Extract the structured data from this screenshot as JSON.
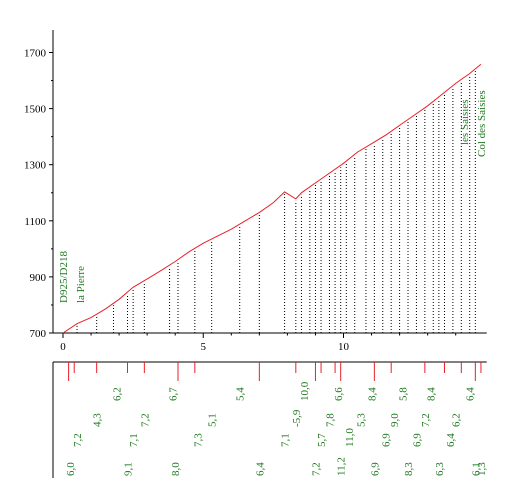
{
  "chart_data": {
    "type": "line",
    "title": "",
    "xlabel": "",
    "ylabel": "",
    "xlim": [
      0,
      15
    ],
    "ylim": [
      700,
      1780
    ],
    "x_ticks": [
      0,
      5,
      10
    ],
    "y_ticks": [
      700,
      900,
      1100,
      1300,
      1500,
      1700
    ],
    "grid": false,
    "colors": {
      "profile": "#e8202a",
      "axis": "#000000",
      "dotted": "#000000",
      "labels": "#1f7a1f"
    },
    "series": [
      {
        "x": [
          0.0,
          0.5,
          1.0,
          1.5,
          2.0,
          2.5,
          3.0,
          3.5,
          4.0,
          4.5,
          5.0,
          5.5,
          6.0,
          6.5,
          7.0,
          7.5,
          7.9,
          8.3,
          8.5,
          9.0,
          9.5,
          10.0,
          10.5,
          11.0,
          11.5,
          12.0,
          12.5,
          13.0,
          13.5,
          14.0,
          14.5,
          14.9
        ],
        "y": [
          700,
          733,
          755,
          785,
          820,
          863,
          893,
          923,
          955,
          990,
          1020,
          1045,
          1070,
          1100,
          1130,
          1165,
          1203,
          1178,
          1200,
          1235,
          1270,
          1305,
          1345,
          1375,
          1405,
          1440,
          1475,
          1510,
          1550,
          1590,
          1625,
          1658
        ]
      }
    ],
    "dotted_markers_x": [
      0.5,
      1.2,
      1.8,
      2.3,
      2.5,
      2.9,
      3.8,
      4.1,
      4.7,
      5.3,
      6.3,
      7.0,
      7.9,
      8.3,
      8.5,
      8.8,
      9.0,
      9.2,
      9.5,
      9.7,
      9.9,
      10.1,
      10.4,
      10.8,
      11.1,
      11.4,
      11.7,
      12.0,
      12.3,
      12.6,
      12.9,
      13.2,
      13.4,
      13.6,
      13.9,
      14.2,
      14.5,
      14.7
    ],
    "bottom_ticks": [
      {
        "x": 0.2,
        "len": 2
      },
      {
        "x": 0.4,
        "len": 1
      },
      {
        "x": 1.2,
        "len": 1
      },
      {
        "x": 2.3,
        "len": 1
      },
      {
        "x": 2.9,
        "len": 1
      },
      {
        "x": 4.1,
        "len": 2
      },
      {
        "x": 4.7,
        "len": 1
      },
      {
        "x": 7.0,
        "len": 2
      },
      {
        "x": 8.3,
        "len": 1
      },
      {
        "x": 9.0,
        "len": 2
      },
      {
        "x": 9.2,
        "len": 1
      },
      {
        "x": 9.7,
        "len": 1
      },
      {
        "x": 9.9,
        "len": 2
      },
      {
        "x": 11.1,
        "len": 2
      },
      {
        "x": 11.7,
        "len": 1
      },
      {
        "x": 12.9,
        "len": 1
      },
      {
        "x": 13.6,
        "len": 1
      },
      {
        "x": 14.2,
        "len": 1
      },
      {
        "x": 14.7,
        "len": 2
      },
      {
        "x": 14.9,
        "len": 1
      }
    ],
    "places": [
      {
        "label": "D925/D218",
        "x": 0.0
      },
      {
        "label": "la Pierre",
        "x": 0.6
      },
      {
        "label": "les Saisies",
        "x": 14.3
      },
      {
        "label": "Col des Saisies",
        "x": 14.9
      }
    ],
    "grades": [
      {
        "label": "6,0",
        "x": 0.25,
        "row": 0
      },
      {
        "label": "7,2",
        "x": 0.5,
        "row": 1
      },
      {
        "label": "4,3",
        "x": 1.2,
        "row": 2
      },
      {
        "label": "6,2",
        "x": 1.9,
        "row": 3
      },
      {
        "label": "9,1",
        "x": 2.3,
        "row": 0
      },
      {
        "label": "7,1",
        "x": 2.5,
        "row": 1
      },
      {
        "label": "7,2",
        "x": 2.9,
        "row": 2
      },
      {
        "label": "8,0",
        "x": 4.0,
        "row": 0
      },
      {
        "label": "6,7",
        "x": 3.9,
        "row": 3
      },
      {
        "label": "7,3",
        "x": 4.8,
        "row": 1
      },
      {
        "label": "5,1",
        "x": 5.3,
        "row": 2
      },
      {
        "label": "5,4",
        "x": 6.3,
        "row": 3
      },
      {
        "label": "6,4",
        "x": 7.0,
        "row": 0
      },
      {
        "label": "7,1",
        "x": 7.9,
        "row": 1
      },
      {
        "label": "-5,9",
        "x": 8.3,
        "row": 2
      },
      {
        "label": "10,0",
        "x": 8.6,
        "row": 3
      },
      {
        "label": "7,2",
        "x": 9.0,
        "row": 0
      },
      {
        "label": "5,7",
        "x": 9.2,
        "row": 1
      },
      {
        "label": "7,8",
        "x": 9.5,
        "row": 2
      },
      {
        "label": "6,6",
        "x": 9.8,
        "row": 3
      },
      {
        "label": "11,2",
        "x": 9.9,
        "row": 0
      },
      {
        "label": "11,0",
        "x": 10.2,
        "row": 1
      },
      {
        "label": "5,3",
        "x": 10.6,
        "row": 2
      },
      {
        "label": "8,4",
        "x": 11.0,
        "row": 3
      },
      {
        "label": "6,9",
        "x": 11.1,
        "row": 0
      },
      {
        "label": "6,9",
        "x": 11.5,
        "row": 1
      },
      {
        "label": "9,0",
        "x": 11.8,
        "row": 2
      },
      {
        "label": "5,8",
        "x": 12.1,
        "row": 3
      },
      {
        "label": "8,3",
        "x": 12.3,
        "row": 0
      },
      {
        "label": "6,9",
        "x": 12.6,
        "row": 1
      },
      {
        "label": "7,2",
        "x": 12.9,
        "row": 2
      },
      {
        "label": "8,4",
        "x": 13.1,
        "row": 3
      },
      {
        "label": "6,3",
        "x": 13.4,
        "row": 0
      },
      {
        "label": "6,4",
        "x": 13.8,
        "row": 1
      },
      {
        "label": "6,2",
        "x": 14.0,
        "row": 2
      },
      {
        "label": "6,4",
        "x": 14.5,
        "row": 3
      },
      {
        "label": "6,1",
        "x": 14.7,
        "row": 0
      },
      {
        "label": "1,3",
        "x": 14.9,
        "row": 0
      }
    ]
  }
}
